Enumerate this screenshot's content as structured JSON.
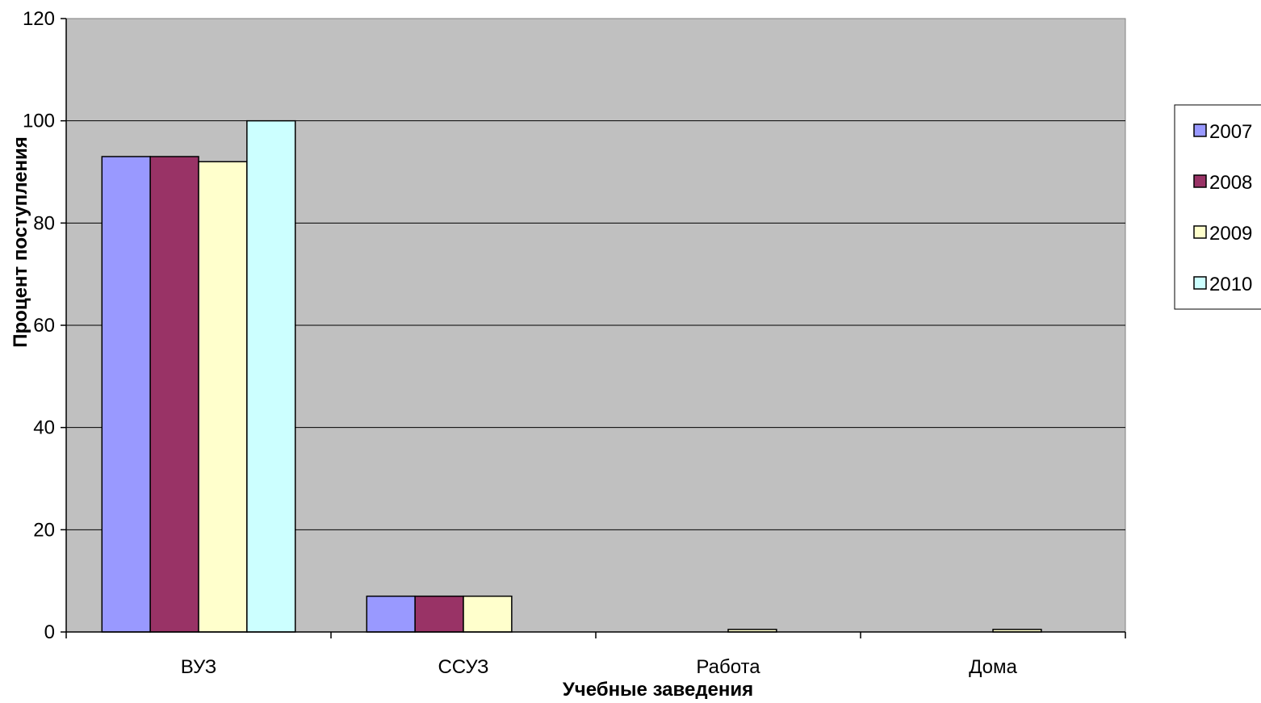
{
  "chart_data": {
    "type": "bar",
    "xlabel": "Учебные заведения",
    "ylabel": "Процент поступления",
    "ylim": [
      0,
      120
    ],
    "yticks": [
      0,
      20,
      40,
      60,
      80,
      100,
      120
    ],
    "categories": [
      "ВУЗ",
      "ССУЗ",
      "Работа",
      "Дома"
    ],
    "series": [
      {
        "name": "2007",
        "color": "#9999ff",
        "values": [
          93,
          7,
          0,
          0
        ]
      },
      {
        "name": "2008",
        "color": "#993366",
        "values": [
          93,
          7,
          0,
          0
        ]
      },
      {
        "name": "2009",
        "color": "#ffffcc",
        "values": [
          92,
          7,
          0.5,
          0.5
        ]
      },
      {
        "name": "2010",
        "color": "#ccffff",
        "values": [
          100,
          0,
          0,
          0
        ]
      }
    ],
    "grid": true,
    "legend_position": "right",
    "plot_background": "#c0c0c0"
  }
}
